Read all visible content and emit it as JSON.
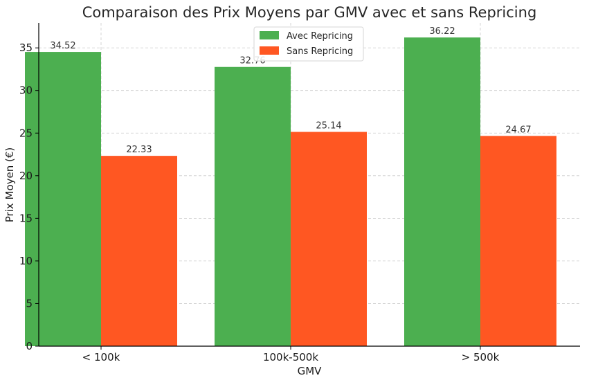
{
  "chart_data": {
    "type": "bar",
    "title": "Comparaison des Prix Moyens par GMV avec et sans Repricing",
    "xlabel": "GMV",
    "ylabel": "Prix Moyen (€)",
    "categories": [
      "< 100k",
      "100k-500k",
      "> 500k"
    ],
    "series": [
      {
        "name": "Avec Repricing",
        "values": [
          34.52,
          32.76,
          36.22
        ],
        "labels": [
          "34.52",
          "32.76",
          "36.22"
        ],
        "color": "#4caf50"
      },
      {
        "name": "Sans Repricing",
        "values": [
          22.33,
          25.14,
          24.67
        ],
        "labels": [
          "22.33",
          "25.14",
          "24.67"
        ],
        "color": "#ff5722"
      }
    ],
    "ylim": [
      0,
      38
    ],
    "yticks": [
      0,
      5,
      10,
      15,
      20,
      25,
      30,
      35
    ],
    "grid": true,
    "legend_position": "top-center"
  }
}
